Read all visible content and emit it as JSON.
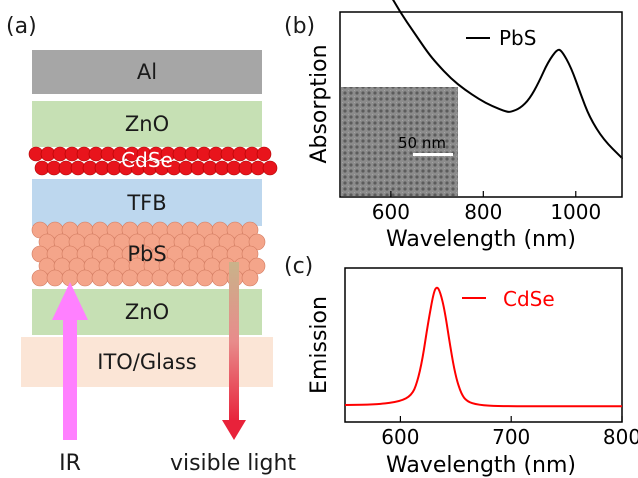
{
  "panel_labels": {
    "a": "(a)",
    "b": "(b)",
    "c": "(c)"
  },
  "device": {
    "layers": [
      "Al",
      "ZnO",
      "CdSe",
      "TFB",
      "PbS",
      "ZnO",
      "ITO/Glass"
    ],
    "ir_label": "IR",
    "visible_label": "visible light"
  },
  "colors": {
    "al": "#a6a6a6",
    "zno": "#c6e0b4",
    "tfb": "#bdd7ee",
    "ito": "#fbe5d6",
    "cdse": "#e8141c",
    "pbs": "#f4a58a",
    "ir_arrow": "#ff80ff",
    "visible_arrow": "#e8223a",
    "pbs_curve": "#000000",
    "cdse_curve": "#ff0000"
  },
  "chart_data": [
    {
      "type": "line",
      "panel": "(b)",
      "xlabel": "Wavelength (nm)",
      "ylabel": "Absorption",
      "xlim": [
        490,
        1100
      ],
      "xticks": [
        600,
        800,
        1000
      ],
      "series": [
        {
          "name": "PbS",
          "x": [
            590,
            620,
            650,
            680,
            700,
            730,
            760,
            790,
            820,
            850,
            860,
            880,
            900,
            920,
            940,
            960,
            970,
            990,
            1010,
            1030,
            1060,
            1100
          ],
          "y": [
            1.18,
            1.05,
            0.94,
            0.83,
            0.77,
            0.69,
            0.63,
            0.58,
            0.54,
            0.51,
            0.51,
            0.53,
            0.58,
            0.67,
            0.78,
            0.85,
            0.84,
            0.75,
            0.61,
            0.48,
            0.36,
            0.26
          ]
        }
      ],
      "inset": {
        "scale_label": "50 nm"
      }
    },
    {
      "type": "line",
      "panel": "(c)",
      "xlabel": "Wavelength (nm)",
      "ylabel": "Emission",
      "xlim": [
        550,
        800
      ],
      "xticks": [
        600,
        700,
        800
      ],
      "series": [
        {
          "name": "CdSe",
          "x": [
            550,
            580,
            600,
            610,
            615,
            620,
            625,
            630,
            633,
            636,
            640,
            645,
            650,
            655,
            660,
            670,
            690,
            720,
            800
          ],
          "y": [
            0.02,
            0.025,
            0.05,
            0.1,
            0.2,
            0.4,
            0.7,
            0.95,
            1.0,
            0.95,
            0.8,
            0.5,
            0.25,
            0.11,
            0.05,
            0.02,
            0.01,
            0.01,
            0.01
          ]
        }
      ]
    }
  ]
}
